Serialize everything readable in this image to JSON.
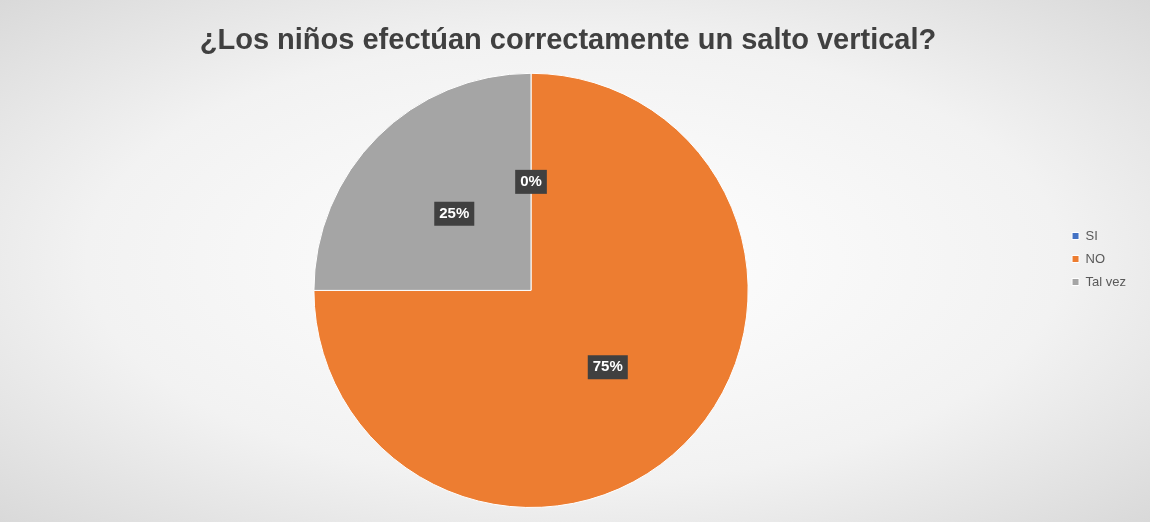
{
  "chart_data": {
    "type": "pie",
    "title": "¿Los niños efectúan correctamente un salto vertical?",
    "categories": [
      "SI",
      "NO",
      "Tal vez"
    ],
    "values": [
      0,
      75,
      25
    ],
    "colors": [
      "#4472c4",
      "#ed7d31",
      "#a5a5a5"
    ],
    "value_labels": [
      "0%",
      "75%",
      "25%"
    ],
    "legend": "right"
  }
}
